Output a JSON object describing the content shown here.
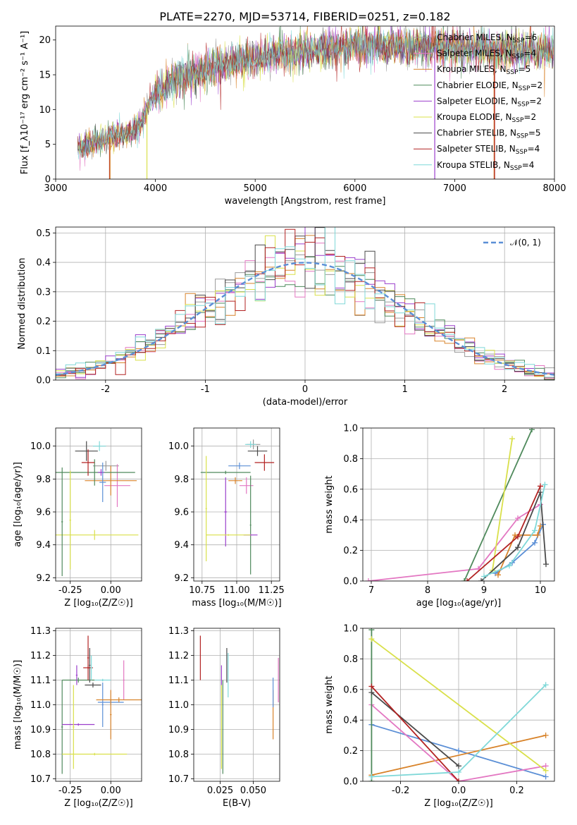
{
  "title": "PLATE=2270, MJD=53714, FIBERID=0251, z=0.182",
  "colors": {
    "chabrier_miles": "#9a9a9a",
    "salpeter_miles": "#e377c2",
    "kroupa_miles": "#d8832a",
    "chabrier_elodie": "#4f8a5c",
    "salpeter_elodie": "#9b3fcc",
    "kroupa_elodie": "#d9e04a",
    "chabrier_stelib": "#4a4a4a",
    "salpeter_stelib": "#b22222",
    "kroupa_stelib": "#7fd8d8",
    "normal": "#5b8fd6",
    "grid": "#b0b0b0"
  },
  "legend": {
    "series_order": [
      "chabrier_miles",
      "salpeter_miles",
      "kroupa_miles",
      "chabrier_elodie",
      "salpeter_elodie",
      "kroupa_elodie",
      "chabrier_stelib",
      "salpeter_stelib",
      "kroupa_stelib"
    ],
    "spectrum": [
      {
        "key": "chabrier_miles",
        "prefix": "Chabrier MILES, N",
        "sub": "SSP",
        "suffix": "=6"
      },
      {
        "key": "salpeter_miles",
        "prefix": "Salpeter MILES, N",
        "sub": "SSP",
        "suffix": "=4"
      },
      {
        "key": "kroupa_miles",
        "prefix": "Kroupa MILES, N",
        "sub": "SSP",
        "suffix": "=5"
      },
      {
        "key": "chabrier_elodie",
        "prefix": "Chabrier ELODIE, N",
        "sub": "SSP",
        "suffix": "=2"
      },
      {
        "key": "salpeter_elodie",
        "prefix": "Salpeter ELODIE, N",
        "sub": "SSP",
        "suffix": "=2"
      },
      {
        "key": "kroupa_elodie",
        "prefix": "Kroupa ELODIE, N",
        "sub": "SSP",
        "suffix": "=2"
      },
      {
        "key": "chabrier_stelib",
        "prefix": "Chabrier STELIB, N",
        "sub": "SSP",
        "suffix": "=5"
      },
      {
        "key": "salpeter_stelib",
        "prefix": "Salpeter STELIB, N",
        "sub": "SSP",
        "suffix": "=4"
      },
      {
        "key": "kroupa_stelib",
        "prefix": "Kroupa STELIB, N",
        "sub": "SSP",
        "suffix": "=4"
      }
    ],
    "normal_label": "𝒩(0, 1)"
  },
  "chart_data": [
    {
      "id": "spectrum",
      "type": "line",
      "xlabel": "wavelength [Angstrom, rest frame]",
      "ylabel": "Flux [f_λ10⁻¹⁷ erg cm⁻² s⁻¹ A⁻¹]",
      "xlim": [
        3000,
        8000
      ],
      "ylim": [
        0,
        22
      ],
      "xticks": [
        3000,
        4000,
        5000,
        6000,
        7000,
        8000
      ],
      "yticks": [
        0,
        5,
        10,
        15,
        20
      ],
      "x_range_data": [
        3220,
        8000
      ],
      "continuum": {
        "x": [
          3220,
          3500,
          3700,
          3850,
          3950,
          4050,
          4200,
          4400,
          4700,
          5000,
          5300,
          5600,
          6000,
          6500,
          7000,
          7500,
          8000
        ],
        "y": [
          4.5,
          5.9,
          6.5,
          7.8,
          11.5,
          12.8,
          14.5,
          15.5,
          16.7,
          17.3,
          18.3,
          18.6,
          19.3,
          19.1,
          18.9,
          18.6,
          18.3
        ]
      },
      "noise_level": 1.3,
      "drops_to_zero": [
        {
          "series": "salpeter_stelib",
          "x": 3540
        },
        {
          "series": "kroupa_miles",
          "x": 3545
        },
        {
          "series": "kroupa_elodie",
          "x": 3915
        },
        {
          "series": "salpeter_elodie",
          "x": 6800
        },
        {
          "series": "kroupa_miles",
          "x": 7395
        },
        {
          "series": "salpeter_stelib",
          "x": 7400
        }
      ]
    },
    {
      "id": "residuals",
      "type": "histogram",
      "xlabel": "(data-model)/error",
      "ylabel": "Normed distribution",
      "xlim": [
        -2.5,
        2.5
      ],
      "ylim": [
        0,
        0.52
      ],
      "xticks": [
        -2,
        -1,
        0,
        1,
        2
      ],
      "yticks": [
        0.0,
        0.1,
        0.2,
        0.3,
        0.4,
        0.5
      ],
      "bin_width": 0.1,
      "bin_start": -2.5,
      "normal": {
        "mu": 0,
        "sigma": 1,
        "label": "𝒩(0, 1)"
      }
    },
    {
      "id": "age_vs_Z",
      "type": "errorbar",
      "xlabel": "Z [log₁₀(Z/Z☉)]",
      "ylabel": "age  [log₁₀(age/yr)]",
      "xlim": [
        -0.34,
        0.19
      ],
      "ylim": [
        9.18,
        10.11
      ],
      "xticks": [
        -0.25,
        0.0
      ],
      "yticks": [
        9.2,
        9.4,
        9.6,
        9.8,
        10.0
      ],
      "points": [
        {
          "series": "chabrier_miles",
          "x": -0.03,
          "xerr": 0.08,
          "y": 9.88,
          "yerr": 0.03
        },
        {
          "series": "salpeter_miles",
          "x": 0.04,
          "xerr": 0.08,
          "y": 9.76,
          "yerr": 0.13
        },
        {
          "series": "kroupa_miles",
          "x": 0.0,
          "xerr": 0.16,
          "y": 9.79,
          "yerr": 0.09
        },
        {
          "series": "chabrier_elodie",
          "x": -0.1,
          "xerr": 0.25,
          "y": 9.84,
          "yerr": 0.08
        },
        {
          "series": "salpeter_elodie",
          "x": -0.06,
          "xerr": 0.02,
          "y": 9.84,
          "yerr": 0.02
        },
        {
          "series": "kroupa_elodie",
          "x": -0.1,
          "xerr": 0.27,
          "y": 9.46,
          "yerr": 0.03
        },
        {
          "series": "chabrier_stelib",
          "x": -0.15,
          "xerr": 0.07,
          "y": 9.97,
          "yerr": 0.06
        },
        {
          "series": "salpeter_stelib",
          "x": -0.14,
          "xerr": 0.04,
          "y": 9.9,
          "yerr": 0.08
        },
        {
          "series": "kroupa_stelib",
          "x": -0.07,
          "xerr": 0.04,
          "y": 10.0,
          "yerr": 0.03
        },
        {
          "series": "normal_blue",
          "x": -0.05,
          "xerr": 0.02,
          "y": 9.78,
          "yerr": 0.12
        },
        {
          "series": "chabrier_elodie",
          "x": -0.3,
          "xerr": 0.005,
          "y": 9.54,
          "yerr": 0.33
        },
        {
          "series": "kroupa_elodie",
          "x": -0.25,
          "xerr": 0.005,
          "y": 9.55,
          "yerr": 0.3
        }
      ]
    },
    {
      "id": "age_vs_mass",
      "type": "errorbar",
      "xlabel": "mass [log₁₀(M/M☉)]",
      "ylabel": "",
      "xlim": [
        10.69,
        11.31
      ],
      "ylim": [
        9.18,
        10.11
      ],
      "xticks": [
        10.75,
        11.0,
        11.25
      ],
      "yticks": [
        9.2,
        9.4,
        9.6,
        9.8,
        10.0
      ],
      "points": [
        {
          "series": "chabrier_miles",
          "x": 11.12,
          "xerr": 0.05,
          "y": 10.01,
          "yerr": 0.03
        },
        {
          "series": "salpeter_miles",
          "x": 11.07,
          "xerr": 0.05,
          "y": 9.76,
          "yerr": 0.05
        },
        {
          "series": "kroupa_miles",
          "x": 10.99,
          "xerr": 0.05,
          "y": 9.79,
          "yerr": 0.02
        },
        {
          "series": "chabrier_elodie",
          "x": 10.92,
          "xerr": 0.18,
          "y": 9.84,
          "yerr": 0.01
        },
        {
          "series": "chabrier_elodie_v",
          "x": 11.1,
          "xerr": 0.005,
          "y": 9.52,
          "yerr": 0.3
        },
        {
          "series": "salpeter_elodie",
          "x": 10.92,
          "xerr": 0.01,
          "y": 9.6,
          "yerr": 0.21
        },
        {
          "series": "salpeter_elodie_h",
          "x": 11.1,
          "xerr": 0.05,
          "y": 9.46,
          "yerr": 0.005
        },
        {
          "series": "kroupa_elodie",
          "x": 10.94,
          "xerr": 0.16,
          "y": 9.46,
          "yerr": 0.005
        },
        {
          "series": "kroupa_elodie_v",
          "x": 10.78,
          "xerr": 0.005,
          "y": 9.62,
          "yerr": 0.32
        },
        {
          "series": "chabrier_stelib",
          "x": 11.15,
          "xerr": 0.07,
          "y": 9.97,
          "yerr": 0.03
        },
        {
          "series": "salpeter_stelib",
          "x": 11.2,
          "xerr": 0.07,
          "y": 9.9,
          "yerr": 0.05
        },
        {
          "series": "kroupa_stelib",
          "x": 11.1,
          "xerr": 0.04,
          "y": 10.01,
          "yerr": 0.02
        },
        {
          "series": "normal_blue",
          "x": 11.02,
          "xerr": 0.08,
          "y": 9.88,
          "yerr": 0.02
        }
      ]
    },
    {
      "id": "weight_vs_age",
      "type": "line",
      "xlabel": "age  [log₁₀(age/yr)]",
      "ylabel": "mass weight",
      "xlim": [
        6.85,
        10.25
      ],
      "ylim": [
        0,
        1
      ],
      "xticks": [
        7,
        8,
        9,
        10
      ],
      "yticks": [
        0.0,
        0.2,
        0.4,
        0.6,
        0.8,
        1.0
      ],
      "series": [
        {
          "key": "salpeter_miles",
          "x": [
            6.95,
            8.9,
            9.6,
            10.0
          ],
          "y": [
            0.0,
            0.08,
            0.41,
            0.5
          ]
        },
        {
          "key": "normal_blue",
          "x": [
            9.2,
            9.5,
            9.9,
            10.05
          ],
          "y": [
            0.05,
            0.12,
            0.25,
            0.37
          ]
        },
        {
          "key": "kroupa_miles",
          "x": [
            9.25,
            9.55,
            9.95,
            10.0
          ],
          "y": [
            0.04,
            0.3,
            0.3,
            0.36
          ]
        },
        {
          "key": "chabrier_elodie",
          "x": [
            8.65,
            9.85
          ],
          "y": [
            0.0,
            0.99
          ]
        },
        {
          "key": "kroupa_elodie",
          "x": [
            9.15,
            9.5
          ],
          "y": [
            0.07,
            0.93
          ]
        },
        {
          "key": "chabrier_stelib",
          "x": [
            8.95,
            9.6,
            10.0,
            10.1
          ],
          "y": [
            0.0,
            0.22,
            0.58,
            0.11
          ]
        },
        {
          "key": "salpeter_stelib",
          "x": [
            8.7,
            9.6,
            10.0
          ],
          "y": [
            0.0,
            0.29,
            0.62
          ]
        },
        {
          "key": "kroupa_stelib",
          "x": [
            9.0,
            9.45,
            9.9,
            10.08
          ],
          "y": [
            0.03,
            0.1,
            0.33,
            0.63
          ]
        }
      ]
    },
    {
      "id": "mass_vs_Z",
      "type": "errorbar",
      "xlabel": "Z [log₁₀(Z/Z☉)]",
      "ylabel": "mass [log₁₀(M/M☉)]",
      "xlim": [
        -0.34,
        0.19
      ],
      "ylim": [
        10.69,
        11.31
      ],
      "xticks": [
        -0.25,
        0.0
      ],
      "yticks": [
        10.7,
        10.8,
        10.9,
        11.0,
        11.1,
        11.2,
        11.3
      ],
      "points": [
        {
          "series": "normal_blue",
          "x": 0.0,
          "xerr": 0.08,
          "y": 11.01,
          "yerr": 0.01
        },
        {
          "series": "normal_blue_v",
          "x": -0.05,
          "xerr": 0.005,
          "y": 11.0,
          "yerr": 0.09
        },
        {
          "series": "salpeter_miles",
          "x": 0.08,
          "xerr": 0.005,
          "y": 11.1,
          "yerr": 0.08
        },
        {
          "series": "kroupa_miles",
          "x": 0.05,
          "xerr": 0.14,
          "y": 11.02,
          "yerr": 0.01
        },
        {
          "series": "kroupa_miles_v",
          "x": 0.0,
          "xerr": 0.005,
          "y": 10.96,
          "yerr": 0.1
        },
        {
          "series": "chabrier_elodie",
          "x": -0.2,
          "xerr": 0.1,
          "y": 11.1,
          "yerr": 0.01
        },
        {
          "series": "chabrier_elodie_v",
          "x": -0.3,
          "xerr": 0.005,
          "y": 10.91,
          "yerr": 0.19
        },
        {
          "series": "salpeter_elodie",
          "x": -0.2,
          "xerr": 0.1,
          "y": 10.92,
          "yerr": 0.005
        },
        {
          "series": "salpeter_elodie_v",
          "x": -0.21,
          "xerr": 0.005,
          "y": 11.12,
          "yerr": 0.04
        },
        {
          "series": "kroupa_elodie",
          "x": -0.1,
          "xerr": 0.2,
          "y": 10.8,
          "yerr": 0.005
        },
        {
          "series": "kroupa_elodie_v",
          "x": -0.23,
          "xerr": 0.005,
          "y": 10.91,
          "yerr": 0.17
        },
        {
          "series": "chabrier_stelib",
          "x": -0.11,
          "xerr": 0.05,
          "y": 11.08,
          "yerr": 0.01
        },
        {
          "series": "chabrier_stelib_v",
          "x": -0.13,
          "xerr": 0.005,
          "y": 11.16,
          "yerr": 0.07
        },
        {
          "series": "salpeter_stelib",
          "x": -0.14,
          "xerr": 0.005,
          "y": 11.19,
          "yerr": 0.09
        },
        {
          "series": "salpeter_stelib_h",
          "x": -0.14,
          "xerr": 0.03,
          "y": 11.15,
          "yerr": 0.005
        },
        {
          "series": "kroupa_stelib",
          "x": -0.05,
          "xerr": 0.05,
          "y": 11.1,
          "yerr": 0.005
        },
        {
          "series": "kroupa_stelib_v",
          "x": -0.12,
          "xerr": 0.005,
          "y": 11.15,
          "yerr": 0.05
        }
      ]
    },
    {
      "id": "mass_vs_EBV",
      "type": "errorbar",
      "xlabel": "E(B-V)",
      "ylabel": "",
      "xlim": [
        0.005,
        0.07
      ],
      "ylim": [
        10.69,
        11.31
      ],
      "xticks": [
        0.025,
        0.05
      ],
      "tick_labels": [
        "0.025",
        "0.050"
      ],
      "yticks": [
        10.7,
        10.8,
        10.9,
        11.0,
        11.1,
        11.2,
        11.3
      ],
      "points": [
        {
          "series": "salpeter_stelib",
          "x": 0.01,
          "xerr": 0.0,
          "y": 11.19,
          "yerr": 0.09
        },
        {
          "series": "salpeter_elodie",
          "x": 0.026,
          "xerr": 0.0,
          "y": 11.12,
          "yerr": 0.04
        },
        {
          "series": "chabrier_elodie",
          "x": 0.027,
          "xerr": 0.0,
          "y": 10.91,
          "yerr": 0.19
        },
        {
          "series": "kroupa_elodie",
          "x": 0.026,
          "xerr": 0.0,
          "y": 10.91,
          "yerr": 0.17
        },
        {
          "series": "chabrier_stelib",
          "x": 0.03,
          "xerr": 0.0,
          "y": 11.16,
          "yerr": 0.07
        },
        {
          "series": "kroupa_stelib",
          "x": 0.031,
          "xerr": 0.0,
          "y": 11.12,
          "yerr": 0.09
        },
        {
          "series": "kroupa_miles",
          "x": 0.065,
          "xerr": 0.0,
          "y": 10.96,
          "yerr": 0.1
        },
        {
          "series": "normal_blue",
          "x": 0.065,
          "xerr": 0.0,
          "y": 11.05,
          "yerr": 0.06
        },
        {
          "series": "salpeter_miles",
          "x": 0.069,
          "xerr": 0.0,
          "y": 11.1,
          "yerr": 0.09
        }
      ]
    },
    {
      "id": "weight_vs_Z",
      "type": "line",
      "xlabel": "Z [log₁₀(Z/Z☉)]",
      "ylabel": "mass weight",
      "xlim": [
        -0.33,
        0.33
      ],
      "ylim": [
        0,
        1
      ],
      "xticks": [
        -0.2,
        0.0,
        0.2
      ],
      "yticks": [
        0.0,
        0.2,
        0.4,
        0.6,
        0.8,
        1.0
      ],
      "series": [
        {
          "key": "normal_blue",
          "x": [
            -0.3,
            0.0,
            0.3
          ],
          "y": [
            0.37,
            0.2,
            0.03
          ]
        },
        {
          "key": "kroupa_miles",
          "x": [
            -0.3,
            0.3
          ],
          "y": [
            0.04,
            0.3
          ]
        },
        {
          "key": "salpeter_miles",
          "x": [
            -0.3,
            0.0,
            0.3
          ],
          "y": [
            0.5,
            0.0,
            0.1
          ]
        },
        {
          "key": "chabrier_elodie",
          "x": [
            -0.3,
            -0.3
          ],
          "y": [
            0.0,
            0.99
          ]
        },
        {
          "key": "kroupa_elodie",
          "x": [
            -0.3,
            0.3
          ],
          "y": [
            0.93,
            0.07
          ]
        },
        {
          "key": "chabrier_stelib",
          "x": [
            -0.3,
            0.0
          ],
          "y": [
            0.58,
            0.1
          ]
        },
        {
          "key": "salpeter_stelib",
          "x": [
            -0.3,
            0.0
          ],
          "y": [
            0.62,
            0.0
          ]
        },
        {
          "key": "kroupa_stelib",
          "x": [
            -0.3,
            0.0,
            0.3
          ],
          "y": [
            0.03,
            0.06,
            0.63
          ]
        }
      ]
    }
  ]
}
